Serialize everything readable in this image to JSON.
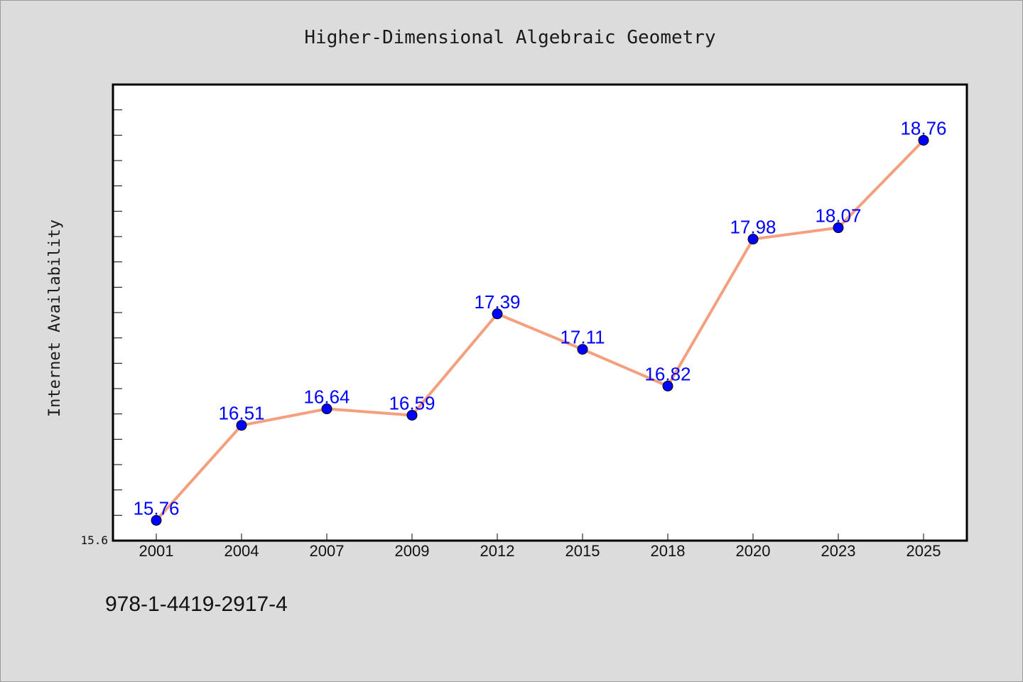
{
  "footer_code": "978-1-4419-2917-4",
  "colors": {
    "background": "#dcdcdc",
    "plot_background": "#ffffff",
    "line": "#f4a07e",
    "marker": "#0000ff",
    "data_label": "#0000ff"
  },
  "chart_data": {
    "type": "line",
    "title": "Higher-Dimensional Algebraic Geometry",
    "xlabel": "",
    "ylabel": "Internet Availability",
    "categories": [
      "2001",
      "2004",
      "2007",
      "2009",
      "2012",
      "2015",
      "2018",
      "2020",
      "2023",
      "2025"
    ],
    "series": [
      {
        "values": [
          15.76,
          16.51,
          16.64,
          16.59,
          17.39,
          17.11,
          16.82,
          17.98,
          18.07,
          18.76
        ],
        "data_labels": [
          "15.76",
          "16.51",
          "16.64",
          "16.59",
          "17.39",
          "17.11",
          "16.82",
          "17.98",
          "18.07",
          "18.76"
        ]
      }
    ],
    "ylim": [
      15.6,
      19.2
    ],
    "y_tick_labels": [
      "15.6"
    ],
    "grid": false,
    "legend": "none"
  }
}
